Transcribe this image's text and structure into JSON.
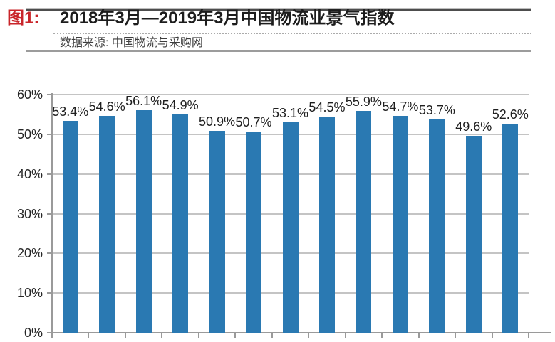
{
  "header": {
    "figure_label": "图1:",
    "title": "2018年3月—2019年3月中国物流业景气指数",
    "source": "数据来源: 中国物流与采购网",
    "figure_label_color": "#c9252a"
  },
  "chart_data": {
    "type": "bar",
    "title": "2018年3月—2019年3月中国物流业景气指数",
    "source": "数据来源: 中国物流与采购网",
    "values": [
      53.4,
      54.6,
      56.1,
      54.9,
      50.9,
      50.7,
      53.1,
      54.5,
      55.9,
      54.7,
      53.7,
      49.6,
      52.6
    ],
    "value_labels": [
      "53.4%",
      "54.6%",
      "56.1%",
      "54.9%",
      "50.9%",
      "50.7%",
      "53.1%",
      "54.5%",
      "55.9%",
      "54.7%",
      "53.7%",
      "49.6%",
      "52.6%"
    ],
    "xlabel": "",
    "ylabel": "",
    "ylim": [
      0,
      60
    ],
    "ytick_labels": [
      "0%",
      "10%",
      "20%",
      "30%",
      "40%",
      "50%",
      "60%"
    ],
    "ytick_values": [
      0,
      10,
      20,
      30,
      40,
      50,
      60
    ],
    "grid": true,
    "legend": false,
    "bar_color": "#2a79b2",
    "gridline_color": "#c4c4c4",
    "axis_color": "#9a9a9a"
  }
}
